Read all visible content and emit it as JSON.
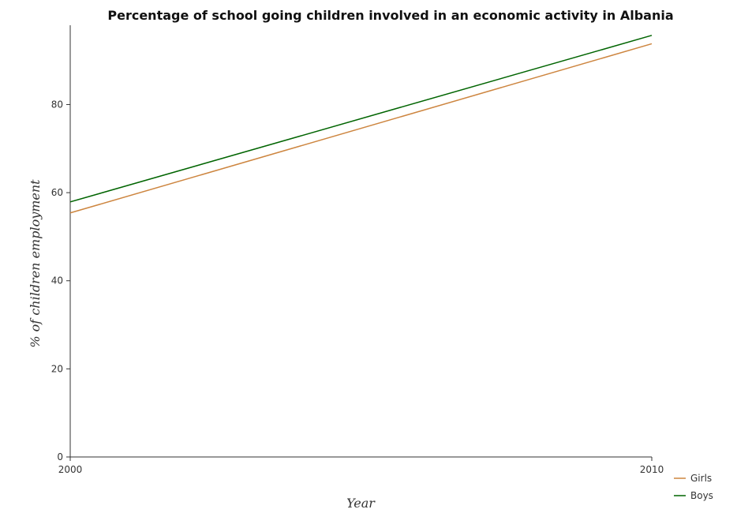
{
  "chart_data": {
    "type": "line",
    "title": "Percentage of school going children involved in an economic activity in Albania",
    "xlabel": "Year",
    "ylabel": "% of children employment",
    "categories": [
      "2000",
      "2010"
    ],
    "ylim": [
      0,
      98
    ],
    "yticks": [
      "0",
      "20",
      "40",
      "60",
      "80"
    ],
    "grid": false,
    "legend_position": "bottom-right",
    "series": [
      {
        "name": "Girls",
        "color": "#cd853f",
        "values": [
          55.4,
          93.8
        ]
      },
      {
        "name": "Boys",
        "color": "#006400",
        "values": [
          57.9,
          95.7
        ]
      }
    ]
  }
}
